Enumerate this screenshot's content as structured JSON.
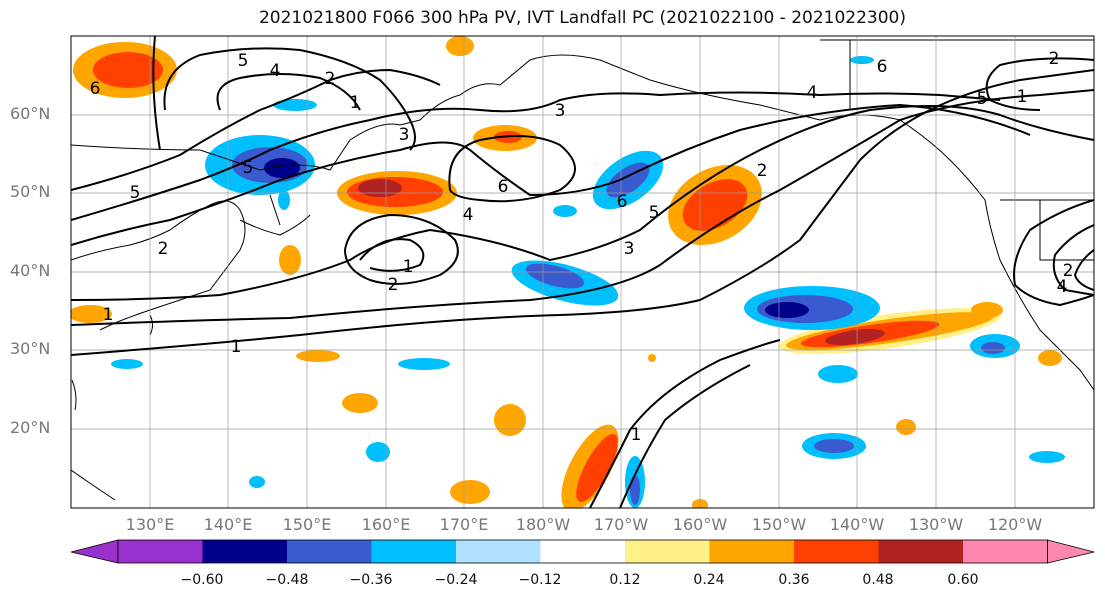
{
  "title": "2021021800 F066 300 hPa PV, IVT Landfall PC (2021022100 - 2021022300)",
  "lat_labels": [
    "60°N",
    "50°N",
    "40°N",
    "30°N",
    "20°N"
  ],
  "lon_labels": [
    "130°E",
    "140°E",
    "150°E",
    "160°E",
    "170°E",
    "180°W",
    "170°W",
    "160°W",
    "150°W",
    "140°W",
    "130°W",
    "120°W"
  ],
  "contour_labels": [
    "5",
    "4",
    "2",
    "1",
    "3",
    "4",
    "6",
    "5",
    "2",
    "5",
    "4",
    "1",
    "2",
    "6",
    "6",
    "5",
    "5",
    "3",
    "2",
    "1",
    "2",
    "1",
    "6",
    "3",
    "1",
    "2",
    "1",
    "4"
  ],
  "colorbar": {
    "colors": [
      "#9932cc",
      "#00008b",
      "#3a5bcf",
      "#00bfff",
      "#b0e2ff",
      "#ffffff",
      "#fff08a",
      "#ffa500",
      "#ff4000",
      "#b22222",
      "#ff88b0"
    ],
    "tick_labels": [
      "−0.60",
      "−0.48",
      "−0.36",
      "−0.24",
      "−0.12",
      "0.12",
      "0.24",
      "0.36",
      "0.48",
      "0.60"
    ]
  },
  "colors": {
    "pos_low": "#fff08a",
    "pos_mid": "#ffa500",
    "pos_high": "#ff4000",
    "pos_max": "#b22222",
    "neg_low": "#b0e2ff",
    "neg_mid": "#00bfff",
    "neg_high": "#3a5bcf",
    "neg_max": "#00008b"
  }
}
